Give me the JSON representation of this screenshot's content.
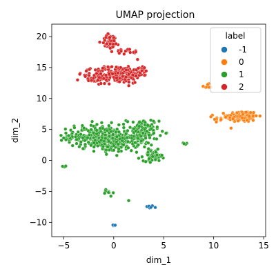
{
  "chart_data": {
    "type": "scatter",
    "title": "UMAP projection",
    "xlabel": "dim_1",
    "ylabel": "dim_2",
    "xlim": [
      -6.2,
      15.2
    ],
    "ylim": [
      -12.3,
      22.0
    ],
    "xticks": [
      -5,
      0,
      5,
      10,
      15
    ],
    "yticks": [
      -10,
      -5,
      0,
      5,
      10,
      15,
      20
    ],
    "grid": false,
    "legend": {
      "title": "label",
      "placement": "top-right",
      "entries": [
        "-1",
        "0",
        "1",
        "2"
      ]
    },
    "series": [
      {
        "name": "-1",
        "color": "#1f77b4",
        "clusters": [
          {
            "center": [
              3.6,
              -7.5
            ],
            "spread": [
              0.2,
              0.12
            ],
            "count": 10
          },
          {
            "center": [
              0.0,
              -10.5
            ],
            "spread": [
              0.12,
              0.1
            ],
            "count": 6
          }
        ]
      },
      {
        "name": "0",
        "color": "#ff7f0e",
        "clusters": [
          {
            "center": [
              12.9,
              7.1
            ],
            "spread": [
              0.75,
              0.45
            ],
            "count": 170
          },
          {
            "center": [
              11.2,
              6.8
            ],
            "spread": [
              0.6,
              0.25
            ],
            "count": 30
          },
          {
            "center": [
              9.3,
              11.9
            ],
            "spread": [
              0.25,
              0.2
            ],
            "count": 8
          }
        ]
      },
      {
        "name": "1",
        "color": "#2ca02c",
        "clusters": [
          {
            "center": [
              -2.0,
              4.0
            ],
            "spread": [
              1.3,
              0.9
            ],
            "count": 200
          },
          {
            "center": [
              0.3,
              3.0
            ],
            "spread": [
              1.1,
              0.8
            ],
            "count": 170
          },
          {
            "center": [
              2.9,
              4.6
            ],
            "spread": [
              0.8,
              1.1
            ],
            "count": 130
          },
          {
            "center": [
              4.0,
              0.8
            ],
            "spread": [
              0.5,
              0.45
            ],
            "count": 60
          },
          {
            "center": [
              -4.5,
              3.6
            ],
            "spread": [
              0.35,
              0.3
            ],
            "count": 15
          },
          {
            "center": [
              -0.6,
              -5.2
            ],
            "spread": [
              0.25,
              0.35
            ],
            "count": 10
          },
          {
            "center": [
              -4.9,
              -0.9
            ],
            "spread": [
              0.1,
              0.1
            ],
            "count": 4
          },
          {
            "center": [
              7.1,
              2.7
            ],
            "spread": [
              0.12,
              0.1
            ],
            "count": 4
          },
          {
            "center": [
              1.5,
              -6.5
            ],
            "spread": [
              0.05,
              0.05
            ],
            "count": 2
          }
        ]
      },
      {
        "name": "2",
        "color": "#d62728",
        "clusters": [
          {
            "center": [
              0.4,
              13.9
            ],
            "spread": [
              1.2,
              0.7
            ],
            "count": 180
          },
          {
            "center": [
              -1.8,
              13.3
            ],
            "spread": [
              0.8,
              0.55
            ],
            "count": 40
          },
          {
            "center": [
              -0.3,
              19.2
            ],
            "spread": [
              0.45,
              0.6
            ],
            "count": 50
          },
          {
            "center": [
              1.4,
              17.6
            ],
            "spread": [
              0.6,
              0.2
            ],
            "count": 20
          },
          {
            "center": [
              2.6,
              14.3
            ],
            "spread": [
              0.4,
              0.5
            ],
            "count": 25
          }
        ]
      }
    ]
  }
}
